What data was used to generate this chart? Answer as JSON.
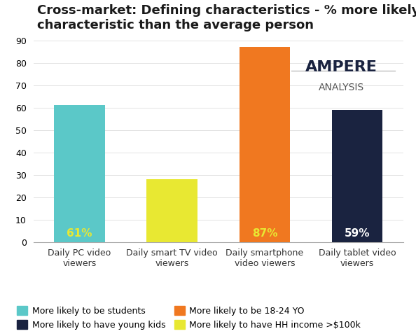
{
  "title": "Cross-market: Defining characteristics - % more likely to have\ncharacteristic than the average person",
  "categories": [
    "Daily PC video\nviewers",
    "Daily smart TV video\nviewers",
    "Daily smartphone\nvideo viewers",
    "Daily tablet video\nviewers"
  ],
  "values": [
    61,
    28,
    87,
    59
  ],
  "bar_colors": [
    "#5BC8C8",
    "#E8E832",
    "#F07820",
    "#1A2340"
  ],
  "label_colors": [
    "#E8E832",
    "#E8E832",
    "#E8E832",
    "#FFFFFF"
  ],
  "ylim": [
    0,
    90
  ],
  "yticks": [
    0,
    10,
    20,
    30,
    40,
    50,
    60,
    70,
    80,
    90
  ],
  "legend_items": [
    {
      "label": "More likely to be students",
      "color": "#5BC8C8"
    },
    {
      "label": "More likely to have young kids",
      "color": "#1A2340"
    },
    {
      "label": "More likely to be 18-24 YO",
      "color": "#F07820"
    },
    {
      "label": "More likely to have HH income >$100k",
      "color": "#E8E832"
    }
  ],
  "ampere_text_top": "AMPERE",
  "ampere_text_bottom": "ANALYSIS",
  "background_color": "#FFFFFF",
  "title_fontsize": 13,
  "bar_label_fontsize": 11
}
